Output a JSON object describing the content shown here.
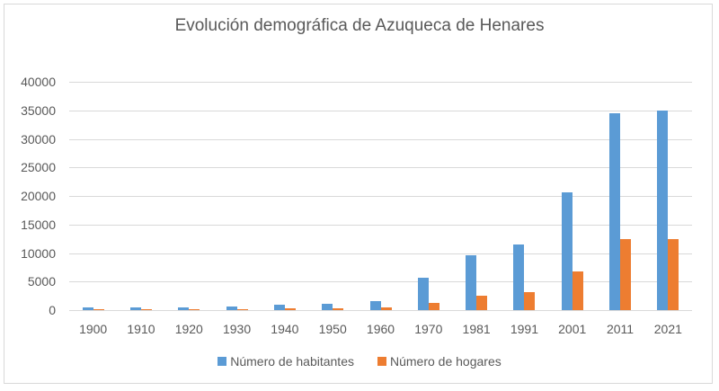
{
  "chart_data": {
    "type": "bar",
    "title": "Evolución demográfica de Azuqueca de Henares",
    "xlabel": "",
    "ylabel": "",
    "ylim": [
      0,
      40000
    ],
    "yticks": [
      0,
      5000,
      10000,
      15000,
      20000,
      25000,
      30000,
      35000,
      40000
    ],
    "grid": true,
    "legend_position": "bottom",
    "categories": [
      "1900",
      "1910",
      "1920",
      "1930",
      "1940",
      "1950",
      "1960",
      "1970",
      "1981",
      "1991",
      "2001",
      "2011",
      "2021"
    ],
    "series": [
      {
        "name": "Número de habitantes",
        "color": "#5b9bd5",
        "values": [
          450,
          450,
          500,
          700,
          1000,
          1150,
          1600,
          5700,
          9600,
          11500,
          20600,
          34500,
          35000
        ]
      },
      {
        "name": "Número de hogares",
        "color": "#ed7d31",
        "values": [
          150,
          150,
          150,
          200,
          250,
          300,
          400,
          1300,
          2450,
          3150,
          6800,
          12500,
          12500
        ]
      }
    ]
  }
}
